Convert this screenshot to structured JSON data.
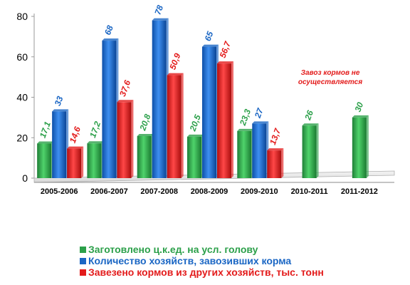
{
  "chart_data": {
    "type": "bar",
    "categories": [
      "2005-2006",
      "2006-2007",
      "2007-2008",
      "2008-2009",
      "2009-2010",
      "2010-2011",
      "2011-2012"
    ],
    "series": [
      {
        "name": "Заготовлено ц.к.ед. на усл. голову",
        "color": "#2ca04a",
        "values": [
          17.1,
          17.2,
          20.8,
          20.5,
          23.3,
          26,
          30
        ],
        "labels": [
          "17,1",
          "17,2",
          "20,8",
          "20,5",
          "23,3",
          "26",
          "30"
        ]
      },
      {
        "name": "Количество хозяйств, завозивших корма",
        "color": "#1a66c4",
        "values": [
          33,
          68,
          78,
          65,
          27,
          null,
          null
        ],
        "labels": [
          "33",
          "68",
          "78",
          "65",
          "27",
          "",
          ""
        ]
      },
      {
        "name": "Завезено кормов из других хозяйств, тыс. тонн",
        "color": "#e31b1b",
        "values": [
          14.6,
          37.6,
          50.9,
          56.7,
          13.7,
          null,
          null
        ],
        "labels": [
          "14,6",
          "37,6",
          "50,9",
          "56,7",
          "13,7",
          "",
          ""
        ]
      }
    ],
    "ylim": [
      0,
      80
    ],
    "yticks": [
      0,
      20,
      40,
      60,
      80
    ],
    "grid": false,
    "legend_position": "bottom-left",
    "annotation": {
      "lines": [
        "Завоз кормов не",
        "осуществляется"
      ],
      "color": "#e31b1b"
    }
  }
}
